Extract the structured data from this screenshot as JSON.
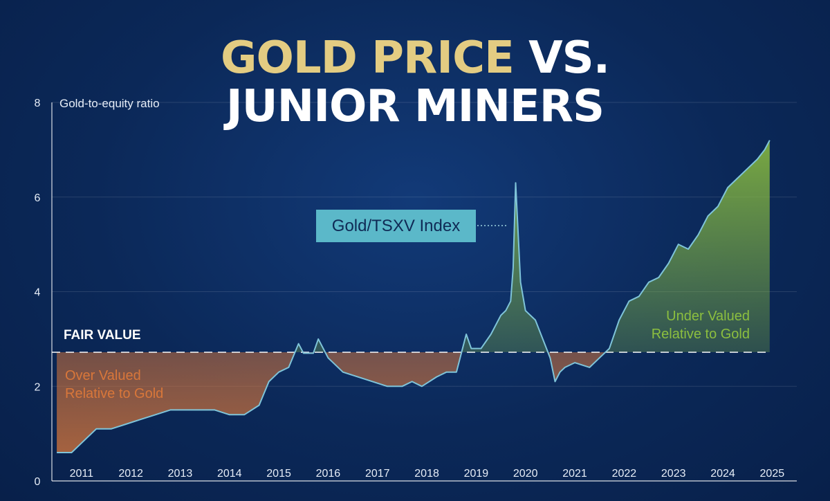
{
  "title": {
    "part1": "GOLD PRICE",
    "part2": "VS.",
    "line2": "JUNIOR MINERS"
  },
  "colors": {
    "background": "#0c2a5c",
    "title_gold": "#e3cc82",
    "line": "#7fc4d9",
    "over_valued": "#d9773a",
    "under_valued": "#8cbf3f",
    "series_box": "#5bb8c9"
  },
  "annotations": {
    "fair_value": "FAIR VALUE",
    "over_valued": [
      "Over Valued",
      "Relative to Gold"
    ],
    "under_valued": [
      "Under Valued",
      "Relative to Gold"
    ]
  },
  "chart_data": {
    "type": "line",
    "ylabel": "Gold-to-equity ratio",
    "ylim": [
      0,
      8
    ],
    "yticks": [
      0,
      2,
      4,
      6,
      8
    ],
    "xlim": [
      2010.4,
      2025.5
    ],
    "xticks": [
      "2011",
      "2012",
      "2013",
      "2014",
      "2015",
      "2016",
      "2017",
      "2018",
      "2019",
      "2020",
      "2021",
      "2022",
      "2023",
      "2024",
      "2025"
    ],
    "grid": true,
    "fair_value": 2.72,
    "series": [
      {
        "name": "Gold/TSXV Index",
        "x": [
          2010.5,
          2010.8,
          2011.0,
          2011.3,
          2011.6,
          2011.9,
          2012.2,
          2012.5,
          2012.8,
          2013.1,
          2013.4,
          2013.7,
          2014.0,
          2014.3,
          2014.6,
          2014.8,
          2015.0,
          2015.2,
          2015.4,
          2015.5,
          2015.7,
          2015.8,
          2016.0,
          2016.3,
          2016.6,
          2016.9,
          2017.2,
          2017.5,
          2017.7,
          2017.9,
          2018.2,
          2018.4,
          2018.6,
          2018.8,
          2018.9,
          2019.1,
          2019.3,
          2019.5,
          2019.6,
          2019.7,
          2019.75,
          2019.8,
          2019.9,
          2020.0,
          2020.2,
          2020.35,
          2020.5,
          2020.6,
          2020.7,
          2020.8,
          2021.0,
          2021.3,
          2021.5,
          2021.7,
          2021.9,
          2022.1,
          2022.3,
          2022.5,
          2022.7,
          2022.9,
          2023.1,
          2023.3,
          2023.5,
          2023.7,
          2023.9,
          2024.1,
          2024.3,
          2024.5,
          2024.7,
          2024.85,
          2024.95
        ],
        "y": [
          0.6,
          0.6,
          0.8,
          1.1,
          1.1,
          1.2,
          1.3,
          1.4,
          1.5,
          1.5,
          1.5,
          1.5,
          1.4,
          1.4,
          1.6,
          2.1,
          2.3,
          2.4,
          2.9,
          2.7,
          2.7,
          3.0,
          2.6,
          2.3,
          2.2,
          2.1,
          2.0,
          2.0,
          2.1,
          2.0,
          2.2,
          2.3,
          2.3,
          3.1,
          2.8,
          2.8,
          3.1,
          3.5,
          3.6,
          3.8,
          4.5,
          6.3,
          4.2,
          3.6,
          3.4,
          3.0,
          2.6,
          2.1,
          2.3,
          2.4,
          2.5,
          2.4,
          2.6,
          2.8,
          3.4,
          3.8,
          3.9,
          4.2,
          4.3,
          4.6,
          5.0,
          4.9,
          5.2,
          5.6,
          5.8,
          6.2,
          6.4,
          6.6,
          6.8,
          7.0,
          7.2
        ]
      }
    ]
  }
}
